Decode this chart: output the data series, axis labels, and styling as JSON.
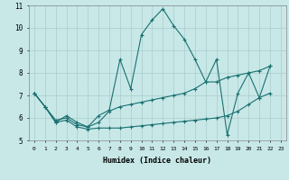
{
  "xlabel": "Humidex (Indice chaleur)",
  "xlim": [
    -0.5,
    23.5
  ],
  "ylim": [
    5,
    11
  ],
  "yticks": [
    5,
    6,
    7,
    8,
    9,
    10,
    11
  ],
  "xticks": [
    0,
    1,
    2,
    3,
    4,
    5,
    6,
    7,
    8,
    9,
    10,
    11,
    12,
    13,
    14,
    15,
    16,
    17,
    18,
    19,
    20,
    21,
    22,
    23
  ],
  "bg_color": "#c8e8e8",
  "grid_color": "#aacccc",
  "line_color": "#1a7070",
  "line1_x": [
    0,
    1,
    2,
    3,
    4,
    5,
    6,
    7,
    8,
    9,
    10,
    11,
    12,
    13,
    14,
    15,
    16,
    17,
    18,
    19,
    20,
    21,
    22
  ],
  "line1_y": [
    7.1,
    6.5,
    5.8,
    6.1,
    5.8,
    5.6,
    6.1,
    6.35,
    8.6,
    7.3,
    9.7,
    10.35,
    10.85,
    10.1,
    9.5,
    8.6,
    7.6,
    8.6,
    5.25,
    7.1,
    8.0,
    6.9,
    8.3
  ],
  "line2_x": [
    0,
    1,
    2,
    3,
    4,
    5,
    6,
    7,
    8,
    9,
    10,
    11,
    12,
    13,
    14,
    15,
    16,
    17,
    18,
    19,
    20,
    21,
    22
  ],
  "line2_y": [
    7.1,
    6.5,
    5.9,
    6.0,
    5.7,
    5.6,
    5.8,
    6.3,
    6.5,
    6.6,
    6.7,
    6.8,
    6.9,
    7.0,
    7.1,
    7.3,
    7.6,
    7.6,
    7.8,
    7.9,
    8.0,
    8.1,
    8.3
  ],
  "line3_x": [
    0,
    1,
    2,
    3,
    4,
    5,
    6,
    7,
    8,
    9,
    10,
    11,
    12,
    13,
    14,
    15,
    16,
    17,
    18,
    19,
    20,
    21,
    22
  ],
  "line3_y": [
    7.1,
    6.5,
    5.8,
    5.9,
    5.6,
    5.5,
    5.55,
    5.55,
    5.55,
    5.6,
    5.65,
    5.7,
    5.75,
    5.8,
    5.85,
    5.9,
    5.95,
    6.0,
    6.1,
    6.3,
    6.6,
    6.9,
    7.1
  ]
}
